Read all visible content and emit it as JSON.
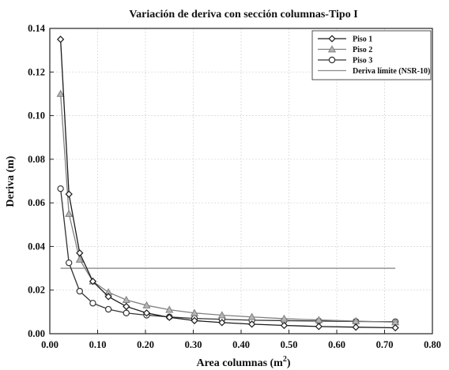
{
  "chart_data": {
    "type": "line",
    "title": "Variación de deriva con sección columnas-Tipo I",
    "xlabel": "Area columnas (m",
    "xlabel_sup": "2",
    "xlabel_close": ")",
    "ylabel": "Deriva (m)",
    "xlim": [
      0,
      0.8
    ],
    "ylim": [
      0,
      0.14
    ],
    "grid": true,
    "legend_position": "top-right",
    "x_ticks": [
      "0.00",
      "0.10",
      "0.20",
      "0.30",
      "0.40",
      "0.50",
      "0.60",
      "0.70",
      "0.80"
    ],
    "y_ticks": [
      "0.00",
      "0.02",
      "0.04",
      "0.06",
      "0.08",
      "0.10",
      "0.12",
      "0.14"
    ],
    "x": [
      0.0225,
      0.04,
      0.0625,
      0.09,
      0.1225,
      0.16,
      0.2025,
      0.25,
      0.3025,
      0.36,
      0.4225,
      0.49,
      0.5625,
      0.64,
      0.7225
    ],
    "series": [
      {
        "name": "Piso 1",
        "marker": "diamond",
        "color": "#1a1a1a",
        "values": [
          0.135,
          0.064,
          0.037,
          0.024,
          0.017,
          0.0125,
          0.0095,
          0.0075,
          0.006,
          0.0051,
          0.0044,
          0.0038,
          0.0033,
          0.003,
          0.0027
        ]
      },
      {
        "name": "Piso 2",
        "marker": "triangle",
        "color": "#808080",
        "values": [
          0.11,
          0.055,
          0.034,
          0.024,
          0.019,
          0.0155,
          0.013,
          0.011,
          0.0095,
          0.0085,
          0.0077,
          0.0069,
          0.0063,
          0.0058,
          0.0053
        ]
      },
      {
        "name": "Piso 3",
        "marker": "circle",
        "color": "#333333",
        "values": [
          0.0665,
          0.0325,
          0.0195,
          0.014,
          0.0112,
          0.0095,
          0.0085,
          0.0077,
          0.007,
          0.0066,
          0.0062,
          0.006,
          0.0058,
          0.0056,
          0.0055
        ]
      }
    ],
    "reference_line": {
      "name": "Deriva límite (NSR-10)",
      "y": 0.03,
      "x_start": 0.0225,
      "x_end": 0.7225,
      "color": "#8a8a8a"
    }
  }
}
